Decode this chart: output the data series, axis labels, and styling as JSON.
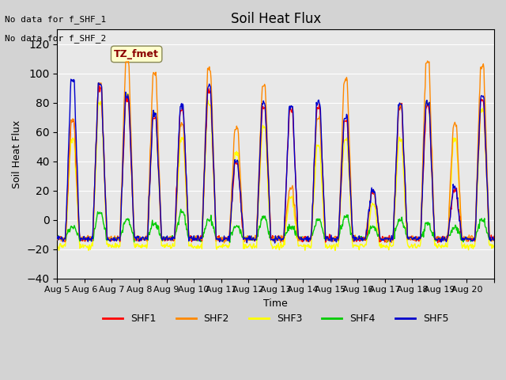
{
  "title": "Soil Heat Flux",
  "ylabel": "Soil Heat Flux",
  "xlabel": "Time",
  "ylim": [
    -40,
    130
  ],
  "yticks": [
    -40,
    -20,
    0,
    20,
    40,
    60,
    80,
    100,
    120
  ],
  "colors": {
    "SHF1": "#ff0000",
    "SHF2": "#ff8800",
    "SHF3": "#ffff00",
    "SHF4": "#00cc00",
    "SHF5": "#0000cc"
  },
  "legend_labels": [
    "SHF1",
    "SHF2",
    "SHF3",
    "SHF4",
    "SHF5"
  ],
  "text_no_data": [
    "No data for f_SHF_1",
    "No data for f_SHF_2"
  ],
  "annotation_label": "TZ_fmet",
  "annotation_color": "#8b0000",
  "annotation_bg": "#ffffcc",
  "bg_color": "#d3d3d3",
  "plot_bg": "#e8e8e8",
  "xtick_positions": [
    0,
    1,
    2,
    3,
    4,
    5,
    6,
    7,
    8,
    9,
    10,
    11,
    12,
    13,
    14,
    15,
    16
  ],
  "xtick_labels": [
    "Aug 5",
    "Aug 6",
    "Aug 7",
    "Aug 8",
    "Aug 9",
    "Aug 10",
    "Aug 11",
    "Aug 12",
    "Aug 13",
    "Aug 14",
    "Aug 15",
    "Aug 16",
    "Aug 17",
    "Aug 18",
    "Aug 19",
    "Aug 20",
    ""
  ],
  "n_days": 16,
  "points_per_day": 48,
  "shf2_amps": [
    68,
    93,
    107,
    100,
    65,
    103,
    62,
    91,
    22,
    69,
    95,
    20,
    78,
    107,
    65,
    105
  ],
  "shf3_amps": [
    55,
    80,
    85,
    72,
    55,
    80,
    45,
    63,
    15,
    50,
    55,
    10,
    55,
    80,
    55,
    75
  ],
  "shf5_amps": [
    95,
    93,
    85,
    72,
    78,
    91,
    40,
    79,
    78,
    80,
    70,
    20,
    79,
    80,
    22,
    85
  ],
  "shf1_amps": [
    68,
    90,
    82,
    70,
    75,
    88,
    38,
    76,
    75,
    77,
    68,
    18,
    76,
    77,
    20,
    82
  ],
  "shf4_amps": [
    -5,
    5,
    0,
    -3,
    5,
    0,
    -5,
    2,
    -5,
    0,
    2,
    -5,
    0,
    -3,
    -5,
    0
  ]
}
